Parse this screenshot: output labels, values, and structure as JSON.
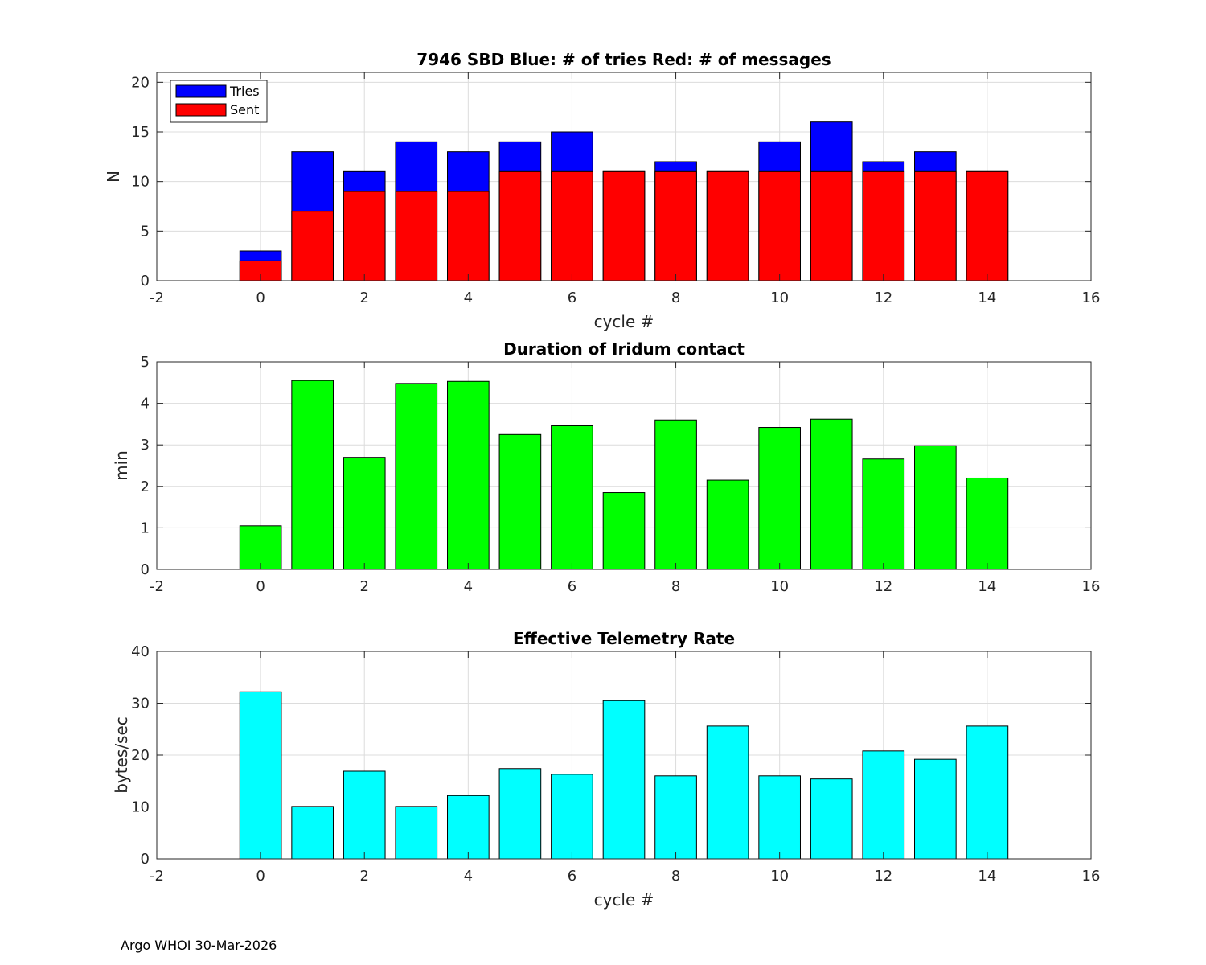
{
  "chart_data": [
    {
      "type": "bar",
      "stacking": "overlay",
      "title": "7946 SBD  Blue: # of tries   Red: # of messages",
      "xlabel": "cycle #",
      "ylabel": "N",
      "xlim": [
        -2,
        16
      ],
      "ylim": [
        0,
        21
      ],
      "xticks": [
        "-2",
        "0",
        "2",
        "4",
        "6",
        "8",
        "10",
        "12",
        "14",
        "16"
      ],
      "yticks": [
        "0",
        "5",
        "10",
        "15",
        "20"
      ],
      "xtick_values": [
        -2,
        0,
        2,
        4,
        6,
        8,
        10,
        12,
        14,
        16
      ],
      "ytick_values": [
        0,
        5,
        10,
        15,
        20
      ],
      "grid": true,
      "legend": {
        "position": "top-left",
        "entries": [
          "Tries",
          "Sent"
        ]
      },
      "x": [
        0,
        1,
        2,
        3,
        4,
        5,
        6,
        7,
        8,
        9,
        10,
        11,
        12,
        13,
        14
      ],
      "series": [
        {
          "name": "Tries",
          "color": "#0000ff",
          "values": [
            3,
            13,
            11,
            14,
            13,
            14,
            15,
            11,
            12,
            11,
            14,
            16,
            12,
            13,
            11
          ]
        },
        {
          "name": "Sent",
          "color": "#ff0000",
          "values": [
            2,
            7,
            9,
            9,
            9,
            11,
            11,
            11,
            11,
            11,
            11,
            11,
            11,
            11,
            11
          ]
        }
      ]
    },
    {
      "type": "bar",
      "title": "Duration of Iridum contact",
      "xlabel": "",
      "ylabel": "min",
      "xlim": [
        -2,
        16
      ],
      "ylim": [
        0,
        5
      ],
      "xticks": [
        "-2",
        "0",
        "2",
        "4",
        "6",
        "8",
        "10",
        "12",
        "14",
        "16"
      ],
      "yticks": [
        "0",
        "1",
        "2",
        "3",
        "4",
        "5"
      ],
      "xtick_values": [
        -2,
        0,
        2,
        4,
        6,
        8,
        10,
        12,
        14,
        16
      ],
      "ytick_values": [
        0,
        1,
        2,
        3,
        4,
        5
      ],
      "grid": true,
      "x": [
        0,
        1,
        2,
        3,
        4,
        5,
        6,
        7,
        8,
        9,
        10,
        11,
        12,
        13,
        14
      ],
      "series": [
        {
          "name": "Duration",
          "color": "#00ff00",
          "values": [
            1.05,
            4.55,
            2.7,
            4.48,
            4.53,
            3.25,
            3.46,
            1.85,
            3.6,
            2.15,
            3.42,
            3.62,
            2.66,
            2.98,
            2.2
          ]
        }
      ]
    },
    {
      "type": "bar",
      "title": "Effective Telemetry Rate",
      "xlabel": "cycle #",
      "ylabel": "bytes/sec",
      "xlim": [
        -2,
        16
      ],
      "ylim": [
        0,
        40
      ],
      "xticks": [
        "-2",
        "0",
        "2",
        "4",
        "6",
        "8",
        "10",
        "12",
        "14",
        "16"
      ],
      "yticks": [
        "0",
        "10",
        "20",
        "30",
        "40"
      ],
      "xtick_values": [
        -2,
        0,
        2,
        4,
        6,
        8,
        10,
        12,
        14,
        16
      ],
      "ytick_values": [
        0,
        10,
        20,
        30,
        40
      ],
      "grid": true,
      "x": [
        0,
        1,
        2,
        3,
        4,
        5,
        6,
        7,
        8,
        9,
        10,
        11,
        12,
        13,
        14
      ],
      "series": [
        {
          "name": "Rate",
          "color": "#00ffff",
          "values": [
            32.2,
            10.1,
            16.9,
            10.1,
            12.2,
            17.4,
            16.3,
            30.5,
            16.0,
            25.6,
            16.0,
            15.4,
            20.8,
            19.2,
            25.6
          ]
        }
      ]
    }
  ],
  "footer": "Argo WHOI 30-Mar-2026"
}
